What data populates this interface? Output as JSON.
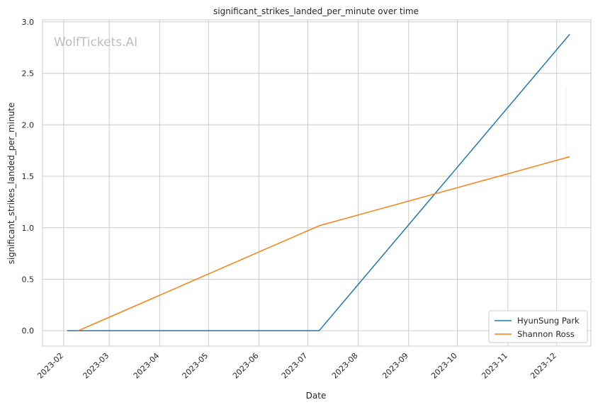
{
  "chart_data": {
    "type": "line",
    "title": "significant_strikes_landed_per_minute over time",
    "xlabel": "Date",
    "ylabel": "significant_strikes_landed_per_minute",
    "watermark": "WolfTickets.AI",
    "x_ticks": [
      "2023-02",
      "2023-03",
      "2023-04",
      "2023-05",
      "2023-06",
      "2023-07",
      "2023-08",
      "2023-09",
      "2023-10",
      "2023-11",
      "2023-12"
    ],
    "y_ticks": [
      "0.0",
      "0.5",
      "1.0",
      "1.5",
      "2.0",
      "2.5",
      "3.0"
    ],
    "xlim": [
      "2023-01-19",
      "2023-12-22"
    ],
    "ylim": [
      -0.15,
      3.02
    ],
    "grid": true,
    "legend_position": "bottom-right",
    "series": [
      {
        "name": "HyunSung Park",
        "color": "#1f77b4",
        "points": [
          {
            "x": "2023-02-03",
            "y": 0.0
          },
          {
            "x": "2023-07-08",
            "y": 0.0
          },
          {
            "x": "2023-12-09",
            "y": 2.88
          }
        ]
      },
      {
        "name": "Shannon Ross",
        "color": "#ff7f0e",
        "points": [
          {
            "x": "2023-02-10",
            "y": 0.0
          },
          {
            "x": "2023-07-08",
            "y": 1.02
          },
          {
            "x": "2023-12-09",
            "y": 1.69
          }
        ]
      }
    ]
  }
}
